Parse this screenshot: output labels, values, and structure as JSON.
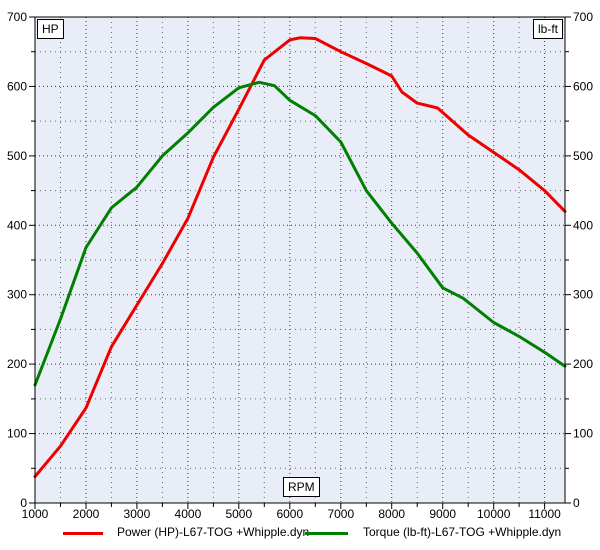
{
  "chart": {
    "left_unit": "HP",
    "right_unit": "lb-ft",
    "x_unit": "RPM",
    "bg_color": "#e8edf8",
    "axis_color": "#000000",
    "grid_major_color": "#3a3a3a",
    "grid_minor_color": "#6a6a6a"
  },
  "legend": [
    {
      "label": "Power (HP)-L67-TOG +Whipple.dyn",
      "color": "#ee0000"
    },
    {
      "label": "Torque (lb-ft)-L67-TOG +Whipple.dyn",
      "color": "#008000"
    }
  ],
  "chart_data": {
    "type": "line",
    "title": "",
    "xlabel": "RPM",
    "ylabel_left": "HP",
    "ylabel_right": "lb-ft",
    "x_range": [
      1000,
      11400
    ],
    "y_range": [
      0,
      700
    ],
    "x_major_step": 1000,
    "x_minor_step": 500,
    "y_major_step": 100,
    "y_minor_step": 50,
    "grid": "dotted",
    "legend_position": "bottom",
    "series": [
      {
        "name": "Power (HP)-L67-TOG +Whipple.dyn",
        "unit": "HP",
        "axis": "left",
        "color": "#ee0000",
        "x": [
          1000,
          1500,
          2000,
          2500,
          3000,
          3500,
          4000,
          4500,
          5000,
          5500,
          6000,
          6200,
          6500,
          7000,
          7500,
          8000,
          8200,
          8500,
          8900,
          9100,
          9500,
          10000,
          10500,
          11000,
          11400
        ],
        "y": [
          38,
          82,
          137,
          225,
          285,
          345,
          410,
          498,
          567,
          638,
          667,
          670,
          669,
          650,
          633,
          615,
          592,
          576,
          569,
          556,
          530,
          505,
          480,
          450,
          420
        ]
      },
      {
        "name": "Torque (lb-ft)-L67-TOG +Whipple.dyn",
        "unit": "lb-ft",
        "axis": "right",
        "color": "#008000",
        "x": [
          1000,
          1500,
          2000,
          2500,
          3000,
          3500,
          4000,
          4500,
          5000,
          5400,
          5700,
          6000,
          6500,
          7000,
          7500,
          8000,
          8500,
          9000,
          9400,
          10000,
          10500,
          11000,
          11400
        ],
        "y": [
          170,
          265,
          368,
          425,
          455,
          500,
          533,
          570,
          598,
          606,
          601,
          580,
          558,
          520,
          450,
          403,
          360,
          310,
          295,
          260,
          240,
          217,
          197
        ]
      }
    ]
  }
}
